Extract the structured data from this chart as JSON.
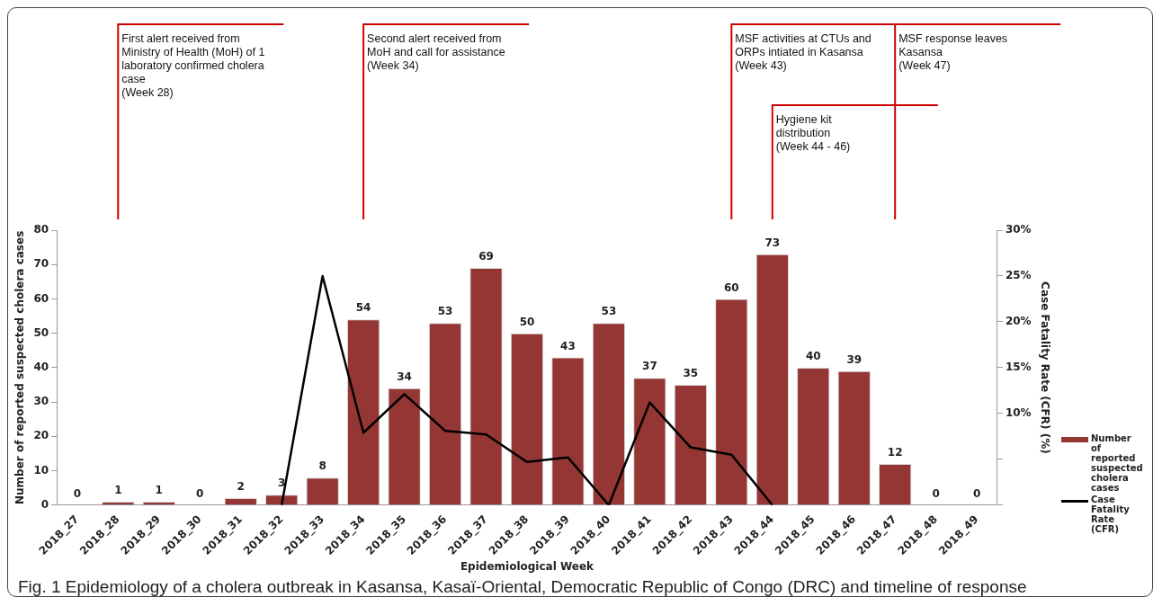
{
  "chart_data": {
    "type": "bar",
    "title": "Fig. 1 Epidemiology of a cholera outbreak in Kasansa, Kasaï-Oriental, Democratic Republic of Congo (DRC) and timeline of response",
    "xlabel": "Epidemiological Week",
    "ylabel": "Number of reported suspected cholera cases",
    "y2label": "Case Fatality Rate (CFR) (%)",
    "categories": [
      "2018_27",
      "2018_28",
      "2018_29",
      "2018_30",
      "2018_31",
      "2018_32",
      "2018_33",
      "2018_34",
      "2018_35",
      "2018_36",
      "2018_37",
      "2018_38",
      "2018_39",
      "2018_40",
      "2018_41",
      "2018_42",
      "2018_43",
      "2018_44",
      "2018_45",
      "2018_46",
      "2018_47",
      "2018_48",
      "2018_49"
    ],
    "series": [
      {
        "name": "Number of reported suspected cholera cases",
        "color": "#943634",
        "values": [
          0,
          1,
          1,
          0,
          2,
          3,
          8,
          54,
          34,
          53,
          69,
          50,
          43,
          53,
          37,
          35,
          60,
          73,
          40,
          39,
          12,
          0,
          0
        ],
        "value_labels": [
          "0",
          "1",
          "1",
          "0",
          "2",
          "3",
          "8",
          "54",
          "34",
          "53",
          "69",
          "50",
          "43",
          "53",
          "37",
          "35",
          "60",
          "73",
          "40",
          "39",
          "12",
          "0",
          "0"
        ]
      },
      {
        "name": "Case Fatality Rate (CFR)",
        "type": "line",
        "axis": "y2",
        "color": "#000000",
        "values": [
          null,
          null,
          null,
          null,
          null,
          0,
          25,
          7.9,
          12.1,
          8.1,
          7.7,
          4.7,
          5.2,
          0,
          11.2,
          6.3,
          5.5,
          0,
          null,
          null,
          null,
          null,
          null
        ]
      }
    ],
    "ylim": [
      0,
      80
    ],
    "yticks": [
      0,
      10,
      20,
      30,
      40,
      50,
      60,
      70,
      80
    ],
    "y2lim": [
      0,
      30
    ],
    "y2ticks": [
      {
        "value": 0,
        "label": null
      },
      {
        "value": 5,
        "label": null
      },
      {
        "value": 10,
        "label": "10%"
      },
      {
        "value": 15,
        "label": "15%"
      },
      {
        "value": 20,
        "label": "20%"
      },
      {
        "value": 25,
        "label": "25%"
      },
      {
        "value": 30,
        "label": "30%"
      }
    ],
    "grid": false,
    "legend": "bottom right",
    "marker": "none",
    "line_style": "solid",
    "ref_lines": [
      {
        "axis": "x",
        "value": "2018_28",
        "color": "#cc0000",
        "label": "First alert received from\nMinistry of Health (MoH) of 1\nlaboratory confirmed cholera\ncase\n(Week 28)"
      },
      {
        "axis": "x",
        "value": "2018_34",
        "color": "#cc0000",
        "label": "Second alert received from\nMoH and call for assistance\n(Week 34)"
      },
      {
        "axis": "x",
        "value": "2018_43",
        "color": "#cc0000",
        "label": "MSF activities at CTUs and\nORPs intiated in Kasansa\n(Week 43)"
      },
      {
        "axis": "x",
        "value": "2018_44",
        "color": "#cc0000",
        "label": "Hygiene kit\ndistribution\n(Week 44 - 46)"
      },
      {
        "axis": "x",
        "value": "2018_47",
        "color": "#cc0000",
        "label": "MSF response leaves\nKasansa\n(Week 47)"
      }
    ]
  }
}
